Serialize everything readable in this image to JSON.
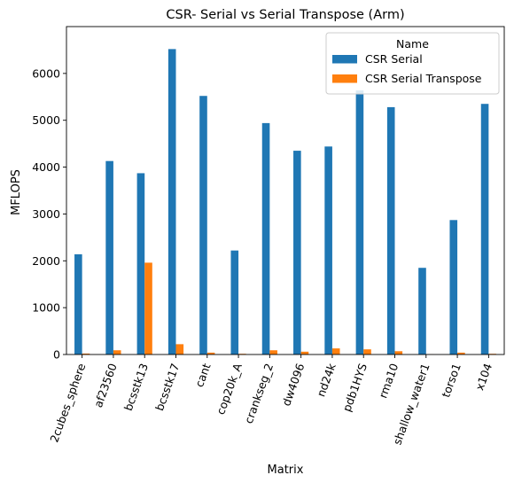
{
  "chart_data": {
    "type": "bar",
    "title": "CSR- Serial vs Serial Transpose (Arm)",
    "xlabel": "Matrix",
    "ylabel": "MFLOPS",
    "ylim": [
      0,
      7000
    ],
    "yticks": [
      0,
      1000,
      2000,
      3000,
      4000,
      5000,
      6000
    ],
    "grid": false,
    "legend": {
      "title": "Name",
      "placement": "top-right"
    },
    "categories": [
      "2cubes_sphere",
      "af23560",
      "bcsstk13",
      "bcsstk17",
      "cant",
      "cop20k_A",
      "crankseg_2",
      "dw4096",
      "nd24k",
      "pdb1HYS",
      "rma10",
      "shallow_water1",
      "torso1",
      "x104"
    ],
    "series": [
      {
        "name": "CSR Serial",
        "color": "#1f77b4",
        "values": [
          2140,
          4130,
          3870,
          6520,
          5520,
          2220,
          4940,
          4350,
          4440,
          5640,
          5280,
          1850,
          2870,
          5350
        ]
      },
      {
        "name": "CSR Serial Transpose",
        "color": "#ff7f0e",
        "values": [
          20,
          90,
          1960,
          220,
          40,
          15,
          90,
          60,
          130,
          110,
          70,
          5,
          40,
          15
        ]
      }
    ]
  }
}
